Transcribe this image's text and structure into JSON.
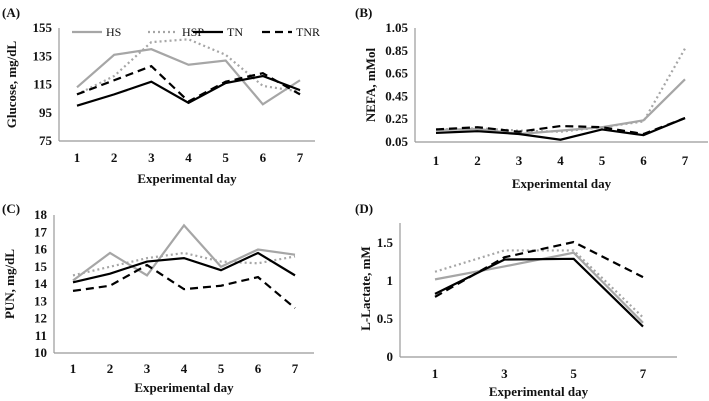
{
  "legend": [
    "HS",
    "HSP",
    "TN",
    "TNR"
  ],
  "series_styles": {
    "HS": {
      "color": "#a6a6a6",
      "dash": "solid"
    },
    "HSP": {
      "color": "#a6a6a6",
      "dash": "dotted"
    },
    "TN": {
      "color": "#000000",
      "dash": "solid"
    },
    "TNR": {
      "color": "#000000",
      "dash": "dashed"
    }
  },
  "chart_data": [
    {
      "panel": "(A)",
      "type": "line",
      "xlabel": "Experimental day",
      "ylabel": "Glucose, mg/dL",
      "x": [
        1,
        2,
        3,
        4,
        5,
        6,
        7
      ],
      "ylim": [
        75,
        155
      ],
      "yticks": [
        "75",
        "95",
        "115",
        "135",
        "155"
      ],
      "xticks": [
        "1",
        "2",
        "3",
        "4",
        "5",
        "6",
        "7"
      ],
      "legend_position": "top",
      "series": [
        {
          "name": "HS",
          "values": [
            113,
            136,
            140,
            129,
            132,
            101,
            118
          ]
        },
        {
          "name": "HSP",
          "values": [
            108,
            121,
            145,
            147,
            136,
            114,
            110
          ]
        },
        {
          "name": "TN",
          "values": [
            100,
            108,
            117,
            102,
            116,
            121,
            111
          ]
        },
        {
          "name": "TNR",
          "values": [
            108,
            118,
            128,
            103,
            117,
            123,
            108
          ]
        }
      ]
    },
    {
      "panel": "(B)",
      "type": "line",
      "xlabel": "Experimental day",
      "ylabel": "NEFA, mMol",
      "x": [
        1,
        2,
        3,
        4,
        5,
        6,
        7
      ],
      "ylim": [
        0.05,
        1.05
      ],
      "yticks": [
        "0.05",
        "0.25",
        "0.45",
        "0.65",
        "0.85",
        "1.05"
      ],
      "xticks": [
        "1",
        "2",
        "3",
        "4",
        "5",
        "6",
        "7"
      ],
      "series": [
        {
          "name": "HS",
          "values": [
            0.155,
            0.165,
            0.12,
            0.15,
            0.18,
            0.24,
            0.6
          ]
        },
        {
          "name": "HSP",
          "values": [
            0.16,
            0.17,
            0.15,
            0.14,
            0.18,
            0.23,
            0.87
          ]
        },
        {
          "name": "TN",
          "values": [
            0.13,
            0.145,
            0.12,
            0.07,
            0.16,
            0.11,
            0.26
          ]
        },
        {
          "name": "TNR",
          "values": [
            0.16,
            0.18,
            0.14,
            0.19,
            0.18,
            0.12,
            0.26
          ]
        }
      ]
    },
    {
      "panel": "(C)",
      "type": "line",
      "xlabel": "Experimental day",
      "ylabel": "PUN, mg/dL",
      "x": [
        1,
        2,
        3,
        4,
        5,
        6,
        7
      ],
      "ylim": [
        10,
        18
      ],
      "yticks": [
        "10",
        "11",
        "12",
        "13",
        "14",
        "15",
        "16",
        "17",
        "18"
      ],
      "xticks": [
        "1",
        "2",
        "3",
        "4",
        "5",
        "6",
        "7"
      ],
      "series": [
        {
          "name": "HS",
          "values": [
            14.2,
            15.8,
            14.5,
            17.4,
            15.0,
            16.0,
            15.7
          ]
        },
        {
          "name": "HSP",
          "values": [
            14.5,
            15.0,
            15.5,
            15.8,
            15.3,
            15.2,
            15.6
          ]
        },
        {
          "name": "TN",
          "values": [
            14.1,
            14.6,
            15.3,
            15.5,
            14.8,
            15.8,
            14.5
          ]
        },
        {
          "name": "TNR",
          "values": [
            13.6,
            13.9,
            15.1,
            13.7,
            13.9,
            14.4,
            12.6
          ]
        }
      ]
    },
    {
      "panel": "(D)",
      "type": "line",
      "xlabel": "Experimental day",
      "ylabel": "L-Lactate, mM",
      "x": [
        1,
        3,
        5,
        7
      ],
      "ylim": [
        0,
        1.8
      ],
      "yticks": [
        "0",
        "0.5",
        "1",
        "1.5"
      ],
      "xticks": [
        "1",
        "3",
        "5",
        "7"
      ],
      "series": [
        {
          "name": "HS",
          "values": [
            1.02,
            1.19,
            1.37,
            0.45
          ]
        },
        {
          "name": "HSP",
          "values": [
            1.12,
            1.4,
            1.4,
            0.52
          ]
        },
        {
          "name": "TN",
          "values": [
            0.83,
            1.28,
            1.29,
            0.4
          ]
        },
        {
          "name": "TNR",
          "values": [
            0.79,
            1.31,
            1.51,
            1.05
          ]
        }
      ]
    }
  ]
}
